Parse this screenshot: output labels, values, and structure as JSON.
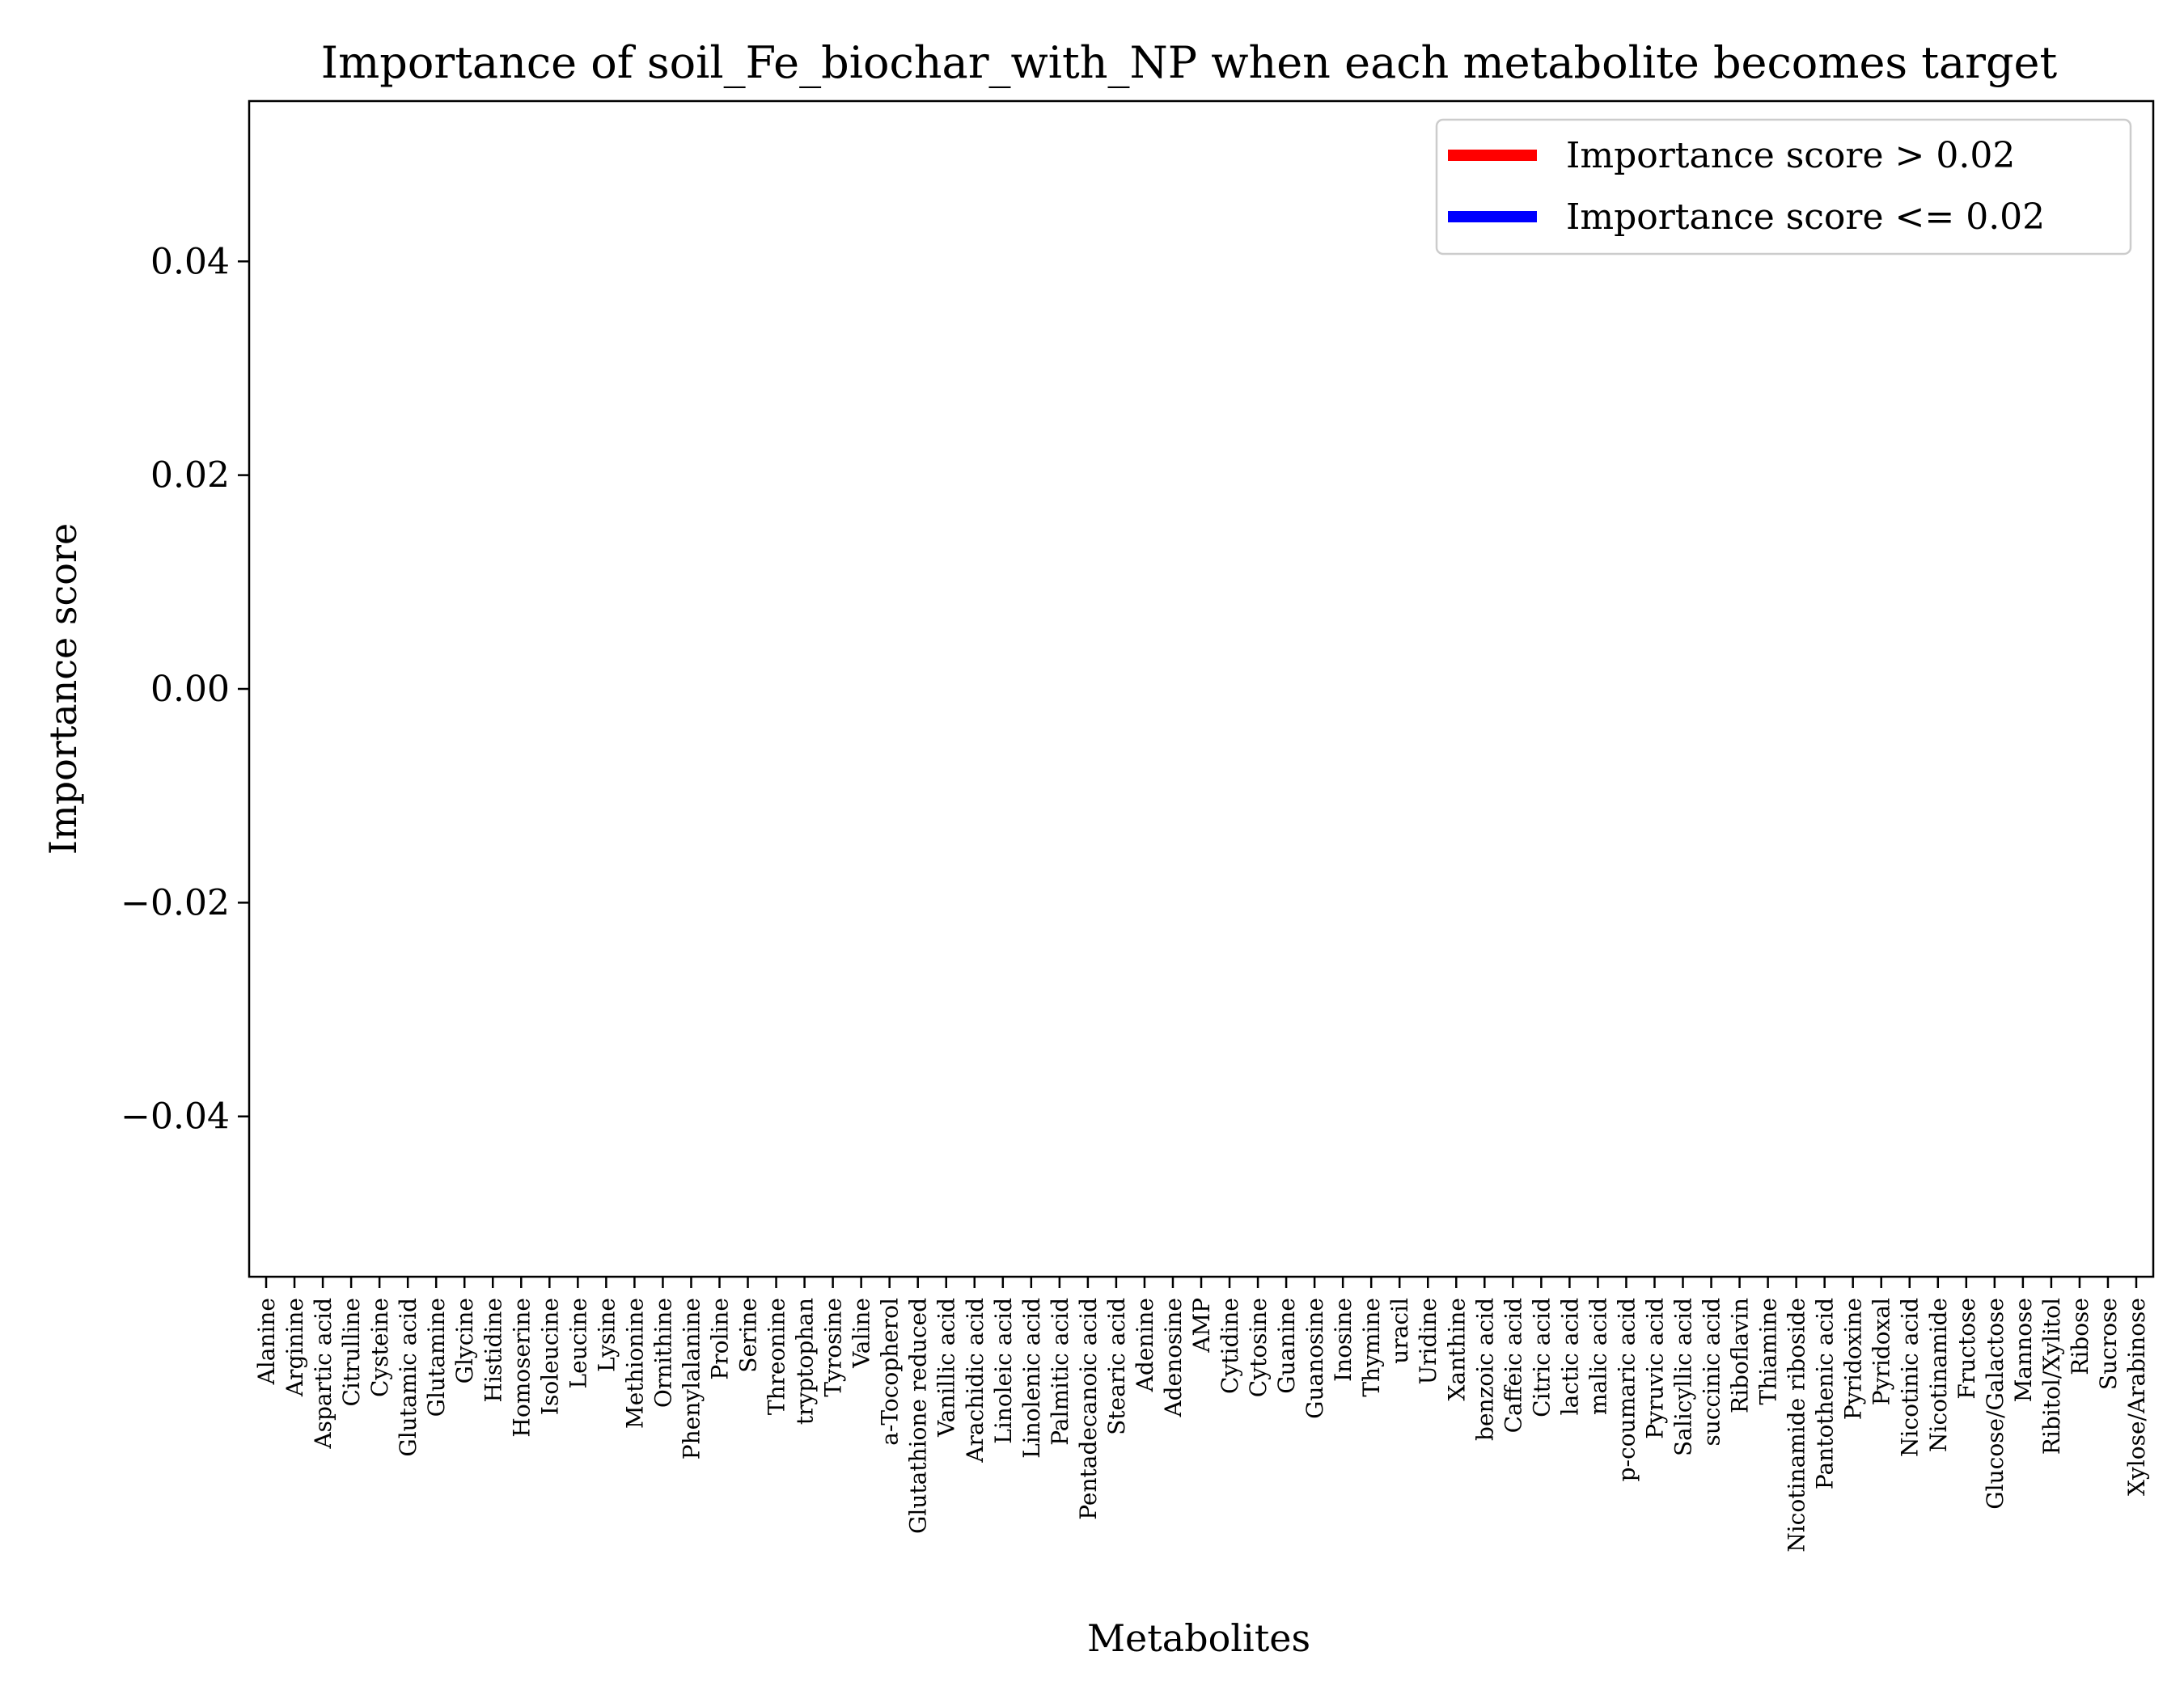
{
  "chart_data": {
    "type": "bar",
    "title": "Importance of soil_Fe_biochar_with_NP when each metabolite becomes target",
    "xlabel": "Metabolites",
    "ylabel": "Importance score",
    "ylim": [
      -0.055,
      0.055
    ],
    "yticks": [
      0.04,
      0.02,
      0.0,
      -0.02,
      -0.04
    ],
    "ytick_labels": [
      "0.04",
      "0.02",
      "0.00",
      "−0.02",
      "−0.04"
    ],
    "grid": false,
    "legend_position": "top-right",
    "legend": [
      {
        "label": "Importance score > 0.02",
        "color": "#ff0000"
      },
      {
        "label": "Importance score <= 0.02",
        "color": "#0000ff"
      }
    ],
    "categories": [
      "Alanine",
      "Arginine",
      "Aspartic acid",
      "Citrulline",
      "Cysteine",
      "Glutamic acid",
      "Glutamine",
      "Glycine",
      "Histidine",
      "Homoserine",
      "Isoleucine",
      "Leucine",
      "Lysine",
      "Methionine",
      "Ornithine",
      "Phenylalanine",
      "Proline",
      "Serine",
      "Threonine",
      "tryptophan",
      "Tyrosine",
      "Valine",
      "a-Tocopherol",
      "Glutathione reduced",
      "Vanillic acid",
      "Arachidic acid",
      "Linoleic acid",
      "Linolenic acid",
      "Palmitic acid",
      "Pentadecanoic acid",
      "Stearic acid",
      "Adenine",
      "Adenosine",
      "AMP",
      "Cytidine",
      "Cytosine",
      "Guanine",
      "Guanosine",
      "Inosine",
      "Thymine",
      "uracil",
      "Uridine",
      "Xanthine",
      "benzoic acid",
      "Caffeic acid",
      "Citric acid",
      "lactic acid",
      "malic acid",
      "p-coumaric acid",
      "Pyruvic acid",
      "Salicyllic acid",
      "succinic acid",
      "Riboflavin",
      "Thiamine",
      "Nicotinamide riboside",
      "Pantothenic acid",
      "Pyridoxine",
      "Pyridoxal",
      "Nicotinic acid",
      "Nicotinamide",
      "Fructose",
      "Glucose/Galactose",
      "Mannose",
      "Ribitol/Xylitol",
      "Ribose",
      "Sucrose",
      "Xylose/Arabinose"
    ],
    "values": [
      0,
      0,
      0,
      0,
      0,
      0,
      0,
      0,
      0,
      0,
      0,
      0,
      0,
      0,
      0,
      0,
      0,
      0,
      0,
      0,
      0,
      0,
      0,
      0,
      0,
      0,
      0,
      0,
      0,
      0,
      0,
      0,
      0,
      0,
      0,
      0,
      0,
      0,
      0,
      0,
      0,
      0,
      0,
      0,
      0,
      0,
      0,
      0,
      0,
      0,
      0,
      0,
      0,
      0,
      0,
      0,
      0,
      0,
      0,
      0,
      0,
      0,
      0,
      0,
      0,
      0,
      0
    ]
  }
}
